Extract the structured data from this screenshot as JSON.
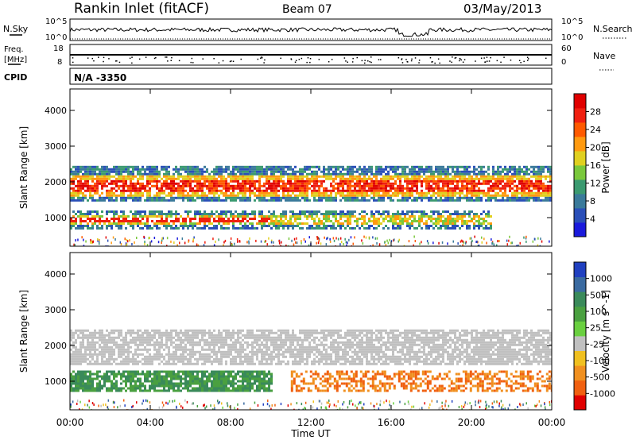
{
  "header": {
    "station": "Rankin Inlet (fitACF)",
    "beam": "Beam 07",
    "date": "03/May/2013"
  },
  "noise_panel": {
    "left_label": "N.Sky",
    "right_label": "N.Search",
    "left_ticks": [
      "10^5",
      "10^0"
    ],
    "right_ticks": [
      "10^5",
      "10^0"
    ]
  },
  "freq_panel": {
    "left_label_1": "Freq.",
    "left_label_2": "[MHz]",
    "left_ticks": [
      "18",
      "8"
    ],
    "right_label": "Nave",
    "right_ticks": [
      "60",
      "0"
    ]
  },
  "cpid": {
    "label": "CPID",
    "value": "N/A -3350"
  },
  "chart_data": [
    {
      "type": "heatmap",
      "title": "",
      "ylabel": "Slant Range [km]",
      "y_ticks": [
        "1000",
        "2000",
        "3000",
        "4000"
      ],
      "ylim": [
        200,
        4600
      ],
      "xlim_hours": [
        0,
        24
      ],
      "colorbar": {
        "label": "Power [dB]",
        "ticks": [
          "4",
          "8",
          "12",
          "16",
          "20",
          "24",
          "28"
        ],
        "colors": [
          "#1a1adc",
          "#2a4fb8",
          "#3a7a9a",
          "#3b9a70",
          "#7ac83c",
          "#e0d020",
          "#ff9a10",
          "#ff5a00",
          "#f02010",
          "#e00000"
        ]
      },
      "bands": [
        {
          "range_km": [
            1500,
            2450
          ],
          "hours": [
            0,
            24
          ],
          "level": "high"
        },
        {
          "range_km": [
            700,
            1200
          ],
          "hours": [
            0,
            21
          ],
          "level": "medium"
        }
      ]
    },
    {
      "type": "heatmap",
      "title": "",
      "ylabel": "Slant Range [km]",
      "y_ticks": [
        "1000",
        "2000",
        "3000",
        "4000"
      ],
      "ylim": [
        200,
        4600
      ],
      "xlim_hours": [
        0,
        24
      ],
      "colorbar": {
        "label": "Velocity [m s^-1]",
        "ticks": [
          "1000",
          "500",
          "100",
          "25",
          "-25",
          "-100",
          "-500",
          "-1000"
        ],
        "colors": [
          "#2040c0",
          "#3a6aa0",
          "#3a8a5a",
          "#4aa040",
          "#6ad040",
          "#c0c0c0",
          "#f0c020",
          "#f09020",
          "#f06010",
          "#e00000"
        ]
      },
      "bands": [
        {
          "range_km": [
            1500,
            2450
          ],
          "hours": [
            0,
            24
          ],
          "level": "ground-scatter"
        },
        {
          "range_km": [
            700,
            1300
          ],
          "hours": [
            0,
            10
          ],
          "level": "positive"
        },
        {
          "range_km": [
            700,
            1300
          ],
          "hours": [
            11,
            24
          ],
          "level": "negative"
        }
      ]
    }
  ],
  "xaxis": {
    "ticks": [
      "00:00",
      "04:00",
      "08:00",
      "12:00",
      "16:00",
      "20:00",
      "00:00"
    ],
    "label": "Time UT"
  }
}
